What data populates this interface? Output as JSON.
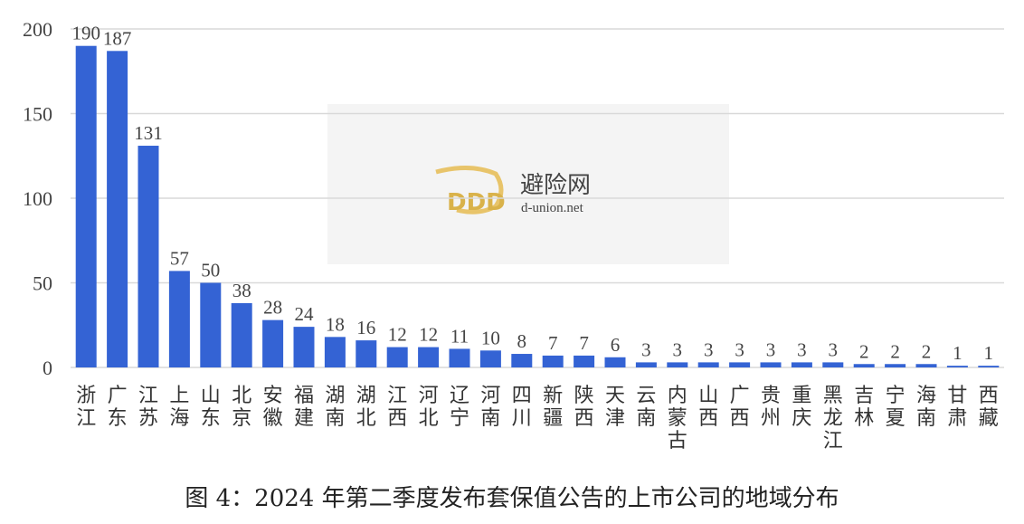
{
  "chart_data": {
    "type": "bar",
    "title": "",
    "xlabel": "",
    "ylabel": "",
    "ylim": [
      0,
      200
    ],
    "yticks": [
      0,
      50,
      100,
      150,
      200
    ],
    "grid": true,
    "bar_color": "#3463d4",
    "categories": [
      "浙江",
      "广东",
      "江苏",
      "上海",
      "山东",
      "北京",
      "安徽",
      "福建",
      "湖南",
      "湖北",
      "江西",
      "河北",
      "辽宁",
      "河南",
      "四川",
      "新疆",
      "陕西",
      "天津",
      "云南",
      "内蒙古",
      "山西",
      "广西",
      "贵州",
      "重庆",
      "黑龙江",
      "吉林",
      "宁夏",
      "海南",
      "甘肃",
      "西藏"
    ],
    "values": [
      190,
      187,
      131,
      57,
      50,
      38,
      28,
      24,
      18,
      16,
      12,
      12,
      11,
      10,
      8,
      7,
      7,
      6,
      3,
      3,
      3,
      3,
      3,
      3,
      3,
      2,
      2,
      2,
      1,
      1
    ]
  },
  "caption": "图 4：2024 年第二季度发布套保值公告的上市公司的地域分布",
  "watermark": {
    "name": "避险网",
    "url": "d-union.net",
    "logo_text": "DDD"
  }
}
